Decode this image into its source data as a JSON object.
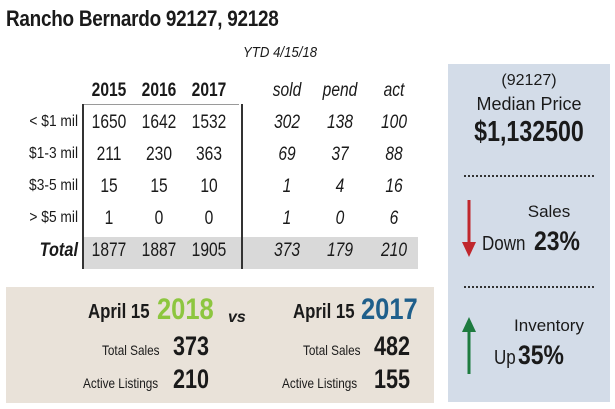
{
  "title": "Rancho Bernardo 92127, 92128",
  "ytd_label": "YTD 4/15/18",
  "table": {
    "year_headers": [
      "2015",
      "2016",
      "2017"
    ],
    "ytd_headers": [
      "sold",
      "pend",
      "act"
    ],
    "rows": [
      {
        "label": "< $1 mil",
        "years": [
          "1650",
          "1642",
          "1532"
        ],
        "ytd": [
          "302",
          "138",
          "100"
        ]
      },
      {
        "label": "$1-3 mil",
        "years": [
          "211",
          "230",
          "363"
        ],
        "ytd": [
          "69",
          "37",
          "88"
        ]
      },
      {
        "label": "$3-5 mil",
        "years": [
          "15",
          "15",
          "10"
        ],
        "ytd": [
          "1",
          "4",
          "16"
        ]
      },
      {
        "label": "> $5 mil",
        "years": [
          "1",
          "0",
          "0"
        ],
        "ytd": [
          "1",
          "0",
          "6"
        ]
      }
    ],
    "total": {
      "label": "Total",
      "years": [
        "1877",
        "1887",
        "1905"
      ],
      "ytd": [
        "373",
        "179",
        "210"
      ]
    }
  },
  "side": {
    "zip": "(92127)",
    "median_label": "Median Price",
    "median_value": "$1,132500",
    "sales_label": "Sales",
    "sales_direction": "Down",
    "sales_pct": "23%",
    "inventory_label": "Inventory",
    "inventory_direction": "Up",
    "inventory_pct": "35%",
    "down_arrow_color": "#c0272d",
    "up_arrow_color": "#1e7b3f"
  },
  "compare": {
    "left": {
      "month": "April 15",
      "year": "2018",
      "year_color": "#8dc63f",
      "sales_label": "Total Sales",
      "sales_value": "373",
      "listings_label": "Active Listings",
      "listings_value": "210"
    },
    "vs": "vs",
    "right": {
      "month": "April 15",
      "year": "2017",
      "year_color": "#1f5f8b",
      "sales_label": "Total Sales",
      "sales_value": "482",
      "listings_label": "Active Listings",
      "listings_value": "155"
    }
  }
}
